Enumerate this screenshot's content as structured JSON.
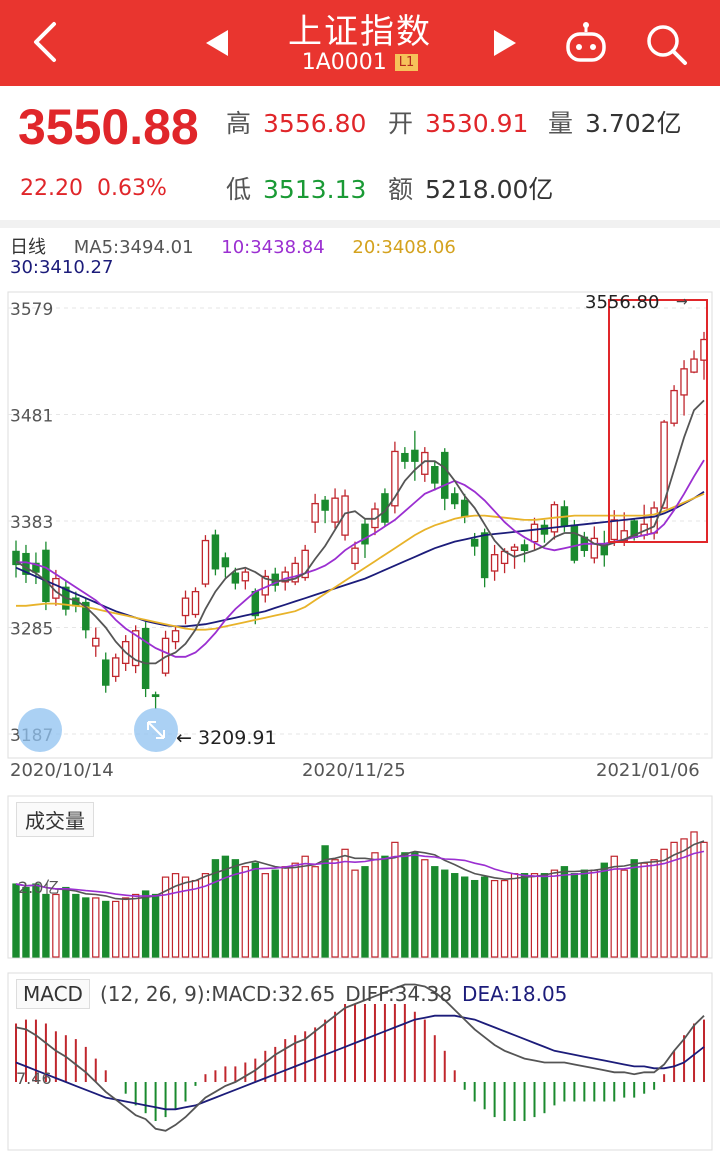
{
  "header": {
    "title": "上证指数",
    "code": "1A0001",
    "level_badge": "L1",
    "icons": [
      "back-arrow-icon",
      "prev-triangle-icon",
      "next-triangle-icon",
      "robot-icon",
      "search-icon"
    ],
    "bg_color": "#e9352f"
  },
  "quote": {
    "price": "3550.88",
    "change": "22.20",
    "change_pct": "0.63%",
    "high_label": "高",
    "high": "3556.80",
    "open_label": "开",
    "open": "3530.91",
    "volume_label": "量",
    "volume": "3.702亿",
    "low_label": "低",
    "low": "3513.13",
    "amount_label": "额",
    "amount": "5218.00亿"
  },
  "ma_legend": {
    "period": "日线",
    "ma5": "MA5:3494.01",
    "ma10": "10:3438.84",
    "ma20": "20:3408.06",
    "ma30": "30:3410.27",
    "colors": {
      "ma5": "#555555",
      "ma10": "#9b2fd1",
      "ma20": "#e8b32a",
      "ma30": "#1c1c7a"
    }
  },
  "kline": {
    "y_ticks": [
      "3579",
      "3481",
      "3383",
      "3285",
      "3187"
    ],
    "max_label": "3556.80",
    "min_label": "3209.91",
    "dates": [
      "2020/10/14",
      "2020/11/25",
      "2021/01/06"
    ],
    "up_color": "#c0262d",
    "down_color": "#1a8a2e"
  },
  "volume": {
    "label": "成交量",
    "y_tick": "2.0亿"
  },
  "macd": {
    "label": "MACD",
    "params": "(12, 26, 9):MACD:32.65",
    "diff": "DIFF:34.38",
    "dea": "DEA:18.05",
    "y_tick": "7.46",
    "diff_color": "#555555",
    "dea_color": "#1c1c7a"
  },
  "chart_data": {
    "type": "candlestick",
    "y_axis_range": [
      3187,
      3579
    ],
    "candles": [
      {
        "o": 3355,
        "c": 3343,
        "h": 3365,
        "l": 3331
      },
      {
        "o": 3353,
        "c": 3334,
        "h": 3361,
        "l": 3326
      },
      {
        "o": 3344,
        "c": 3336,
        "h": 3354,
        "l": 3325
      },
      {
        "o": 3356,
        "c": 3309,
        "h": 3364,
        "l": 3301
      },
      {
        "o": 3312,
        "c": 3330,
        "h": 3338,
        "l": 3305
      },
      {
        "o": 3322,
        "c": 3302,
        "h": 3328,
        "l": 3296
      },
      {
        "o": 3312,
        "c": 3305,
        "h": 3318,
        "l": 3299
      },
      {
        "o": 3308,
        "c": 3283,
        "h": 3312,
        "l": 3275
      },
      {
        "o": 3268,
        "c": 3275,
        "h": 3285,
        "l": 3258
      },
      {
        "o": 3255,
        "c": 3232,
        "h": 3262,
        "l": 3225
      },
      {
        "o": 3240,
        "c": 3257,
        "h": 3261,
        "l": 3235
      },
      {
        "o": 3252,
        "c": 3272,
        "h": 3278,
        "l": 3245
      },
      {
        "o": 3250,
        "c": 3282,
        "h": 3287,
        "l": 3243
      },
      {
        "o": 3284,
        "c": 3229,
        "h": 3290,
        "l": 3221
      },
      {
        "o": 3223,
        "c": 3222,
        "h": 3226,
        "l": 3210
      },
      {
        "o": 3243,
        "c": 3275,
        "h": 3282,
        "l": 3240
      },
      {
        "o": 3272,
        "c": 3282,
        "h": 3287,
        "l": 3265
      },
      {
        "o": 3296,
        "c": 3312,
        "h": 3319,
        "l": 3288
      },
      {
        "o": 3297,
        "c": 3318,
        "h": 3322,
        "l": 3294
      },
      {
        "o": 3325,
        "c": 3365,
        "h": 3370,
        "l": 3322
      },
      {
        "o": 3370,
        "c": 3339,
        "h": 3375,
        "l": 3333
      },
      {
        "o": 3349,
        "c": 3341,
        "h": 3354,
        "l": 3331
      },
      {
        "o": 3335,
        "c": 3326,
        "h": 3340,
        "l": 3320
      },
      {
        "o": 3328,
        "c": 3336,
        "h": 3339,
        "l": 3320
      },
      {
        "o": 3318,
        "c": 3296,
        "h": 3321,
        "l": 3288
      },
      {
        "o": 3315,
        "c": 3332,
        "h": 3338,
        "l": 3308
      },
      {
        "o": 3334,
        "c": 3324,
        "h": 3340,
        "l": 3318
      },
      {
        "o": 3327,
        "c": 3336,
        "h": 3341,
        "l": 3319
      },
      {
        "o": 3327,
        "c": 3344,
        "h": 3350,
        "l": 3324
      },
      {
        "o": 3331,
        "c": 3356,
        "h": 3361,
        "l": 3328
      },
      {
        "o": 3382,
        "c": 3399,
        "h": 3408,
        "l": 3372
      },
      {
        "o": 3402,
        "c": 3393,
        "h": 3406,
        "l": 3381
      },
      {
        "o": 3382,
        "c": 3404,
        "h": 3413,
        "l": 3376
      },
      {
        "o": 3370,
        "c": 3406,
        "h": 3412,
        "l": 3365
      },
      {
        "o": 3344,
        "c": 3358,
        "h": 3364,
        "l": 3338
      },
      {
        "o": 3380,
        "c": 3362,
        "h": 3385,
        "l": 3349
      },
      {
        "o": 3377,
        "c": 3394,
        "h": 3400,
        "l": 3370
      },
      {
        "o": 3408,
        "c": 3382,
        "h": 3413,
        "l": 3378
      },
      {
        "o": 3397,
        "c": 3447,
        "h": 3456,
        "l": 3390
      },
      {
        "o": 3445,
        "c": 3438,
        "h": 3451,
        "l": 3431
      },
      {
        "o": 3448,
        "c": 3438,
        "h": 3466,
        "l": 3420
      },
      {
        "o": 3426,
        "c": 3446,
        "h": 3451,
        "l": 3419
      },
      {
        "o": 3433,
        "c": 3418,
        "h": 3438,
        "l": 3411
      },
      {
        "o": 3446,
        "c": 3404,
        "h": 3450,
        "l": 3393
      },
      {
        "o": 3408,
        "c": 3399,
        "h": 3414,
        "l": 3394
      },
      {
        "o": 3402,
        "c": 3387,
        "h": 3408,
        "l": 3381
      },
      {
        "o": 3366,
        "c": 3360,
        "h": 3372,
        "l": 3351
      },
      {
        "o": 3372,
        "c": 3331,
        "h": 3376,
        "l": 3322
      },
      {
        "o": 3337,
        "c": 3352,
        "h": 3361,
        "l": 3328
      },
      {
        "o": 3344,
        "c": 3355,
        "h": 3358,
        "l": 3335
      },
      {
        "o": 3356,
        "c": 3359,
        "h": 3362,
        "l": 3339
      },
      {
        "o": 3361,
        "c": 3356,
        "h": 3366,
        "l": 3345
      },
      {
        "o": 3364,
        "c": 3380,
        "h": 3386,
        "l": 3356
      },
      {
        "o": 3379,
        "c": 3371,
        "h": 3384,
        "l": 3363
      },
      {
        "o": 3373,
        "c": 3398,
        "h": 3401,
        "l": 3366
      },
      {
        "o": 3396,
        "c": 3379,
        "h": 3402,
        "l": 3373
      },
      {
        "o": 3379,
        "c": 3347,
        "h": 3384,
        "l": 3344
      },
      {
        "o": 3368,
        "c": 3356,
        "h": 3373,
        "l": 3350
      },
      {
        "o": 3349,
        "c": 3367,
        "h": 3378,
        "l": 3344
      },
      {
        "o": 3362,
        "c": 3352,
        "h": 3374,
        "l": 3341
      },
      {
        "o": 3366,
        "c": 3384,
        "h": 3393,
        "l": 3360
      },
      {
        "o": 3365,
        "c": 3374,
        "h": 3391,
        "l": 3360
      },
      {
        "o": 3383,
        "c": 3368,
        "h": 3385,
        "l": 3365
      },
      {
        "o": 3370,
        "c": 3380,
        "h": 3398,
        "l": 3366
      },
      {
        "o": 3372,
        "c": 3395,
        "h": 3401,
        "l": 3366
      },
      {
        "o": 3395,
        "c": 3474,
        "h": 3476,
        "l": 3394
      },
      {
        "o": 3473,
        "c": 3503,
        "h": 3508,
        "l": 3470
      },
      {
        "o": 3499,
        "c": 3523,
        "h": 3531,
        "l": 3480
      },
      {
        "o": 3520,
        "c": 3532,
        "h": 3540,
        "l": 3519
      },
      {
        "o": 3531,
        "c": 3550,
        "h": 3557,
        "l": 3513
      }
    ],
    "ma5": [
      3346,
      3340,
      3335,
      3328,
      3318,
      3312,
      3310,
      3304,
      3295,
      3285,
      3272,
      3262,
      3255,
      3252,
      3252,
      3258,
      3262,
      3270,
      3283,
      3302,
      3318,
      3330,
      3338,
      3340,
      3336,
      3330,
      3328,
      3328,
      3330,
      3335,
      3348,
      3360,
      3375,
      3390,
      3392,
      3385,
      3385,
      3392,
      3405,
      3420,
      3430,
      3438,
      3438,
      3432,
      3420,
      3406,
      3395,
      3380,
      3365,
      3355,
      3350,
      3353,
      3356,
      3360,
      3368,
      3372,
      3372,
      3368,
      3362,
      3360,
      3363,
      3366,
      3370,
      3374,
      3378,
      3400,
      3430,
      3460,
      3485,
      3494
    ],
    "ma10": [
      3345,
      3345,
      3343,
      3340,
      3334,
      3328,
      3322,
      3316,
      3310,
      3302,
      3292,
      3284,
      3278,
      3272,
      3266,
      3262,
      3258,
      3258,
      3262,
      3270,
      3280,
      3292,
      3302,
      3310,
      3318,
      3322,
      3326,
      3330,
      3332,
      3335,
      3338,
      3342,
      3348,
      3356,
      3362,
      3367,
      3372,
      3378,
      3384,
      3392,
      3400,
      3408,
      3412,
      3416,
      3420,
      3416,
      3410,
      3402,
      3392,
      3382,
      3374,
      3368,
      3363,
      3358,
      3356,
      3358,
      3360,
      3362,
      3362,
      3362,
      3364,
      3366,
      3368,
      3370,
      3372,
      3380,
      3393,
      3408,
      3424,
      3439
    ],
    "ma20": [
      3305,
      3305,
      3306,
      3307,
      3307,
      3306,
      3305,
      3304,
      3302,
      3300,
      3298,
      3296,
      3294,
      3292,
      3290,
      3288,
      3286,
      3284,
      3283,
      3283,
      3284,
      3286,
      3288,
      3290,
      3292,
      3294,
      3296,
      3298,
      3300,
      3304,
      3310,
      3316,
      3322,
      3328,
      3334,
      3340,
      3346,
      3352,
      3358,
      3364,
      3370,
      3375,
      3379,
      3382,
      3385,
      3387,
      3388,
      3388,
      3387,
      3386,
      3385,
      3384,
      3384,
      3385,
      3386,
      3387,
      3388,
      3388,
      3388,
      3388,
      3388,
      3388,
      3388,
      3388,
      3389,
      3392,
      3396,
      3400,
      3404,
      3408
    ],
    "ma30": [
      3340,
      3336,
      3332,
      3328,
      3324,
      3320,
      3316,
      3312,
      3308,
      3304,
      3300,
      3297,
      3294,
      3291,
      3289,
      3287,
      3286,
      3286,
      3287,
      3288,
      3290,
      3292,
      3294,
      3296,
      3298,
      3300,
      3303,
      3306,
      3309,
      3312,
      3315,
      3318,
      3321,
      3324,
      3327,
      3330,
      3334,
      3338,
      3342,
      3346,
      3350,
      3354,
      3358,
      3361,
      3364,
      3366,
      3368,
      3370,
      3371,
      3372,
      3373,
      3374,
      3375,
      3376,
      3377,
      3378,
      3379,
      3380,
      3381,
      3382,
      3383,
      3384,
      3385,
      3386,
      3387,
      3390,
      3394,
      3399,
      3404,
      3410
    ],
    "volumes": [
      2.1,
      2.0,
      2.1,
      1.8,
      1.8,
      2.0,
      1.8,
      1.7,
      1.7,
      1.6,
      1.6,
      1.7,
      1.8,
      1.9,
      1.8,
      2.3,
      2.4,
      2.3,
      2.2,
      2.4,
      2.8,
      2.9,
      2.8,
      2.6,
      2.7,
      2.4,
      2.5,
      2.6,
      2.7,
      2.9,
      2.6,
      3.2,
      2.8,
      3.1,
      2.5,
      2.6,
      3.0,
      2.9,
      3.3,
      3.0,
      3.0,
      2.8,
      2.6,
      2.5,
      2.4,
      2.3,
      2.2,
      2.3,
      2.2,
      2.2,
      2.4,
      2.4,
      2.4,
      2.4,
      2.5,
      2.6,
      2.4,
      2.5,
      2.5,
      2.7,
      2.9,
      2.5,
      2.8,
      2.7,
      2.8,
      3.1,
      3.3,
      3.4,
      3.6,
      3.3
    ],
    "macd_diff": [
      28,
      27,
      24,
      20,
      16,
      13,
      9,
      5,
      0,
      -5,
      -9,
      -13,
      -17,
      -19,
      -24,
      -25,
      -22,
      -18,
      -13,
      -8,
      -5,
      -2,
      0,
      3,
      6,
      10,
      14,
      17,
      20,
      22,
      26,
      30,
      34,
      38,
      40,
      42,
      44,
      46,
      48,
      50,
      50,
      49,
      46,
      42,
      37,
      32,
      27,
      23,
      19,
      16,
      14,
      12,
      11,
      10,
      10,
      10,
      9,
      8,
      7,
      6,
      5,
      5,
      4,
      5,
      5,
      9,
      16,
      22,
      29,
      34
    ],
    "macd_dea": [
      10,
      8,
      6,
      4,
      2,
      0,
      -2,
      -4,
      -6,
      -8,
      -9,
      -10,
      -11,
      -12,
      -13,
      -14,
      -14,
      -13,
      -12,
      -10,
      -8,
      -6,
      -4,
      -2,
      0,
      2,
      4,
      6,
      8,
      10,
      12,
      14,
      16,
      18,
      20,
      22,
      24,
      26,
      28,
      30,
      32,
      33,
      34,
      34,
      34,
      33,
      32,
      30,
      28,
      26,
      24,
      22,
      20,
      18,
      16,
      15,
      14,
      13,
      12,
      11,
      10,
      9,
      8,
      8,
      7,
      7,
      8,
      10,
      14,
      18
    ],
    "macd_hist": [
      30,
      32,
      32,
      30,
      26,
      24,
      22,
      18,
      12,
      6,
      0,
      -6,
      -12,
      -16,
      -20,
      -18,
      -14,
      -10,
      -2,
      4,
      6,
      8,
      8,
      10,
      12,
      16,
      18,
      22,
      24,
      26,
      28,
      32,
      36,
      40,
      40,
      40,
      40,
      40,
      40,
      40,
      36,
      32,
      24,
      16,
      6,
      -4,
      -10,
      -14,
      -18,
      -20,
      -20,
      -20,
      -18,
      -16,
      -12,
      -10,
      -10,
      -10,
      -10,
      -10,
      -10,
      -8,
      -8,
      -6,
      -4,
      4,
      16,
      24,
      30,
      32
    ]
  }
}
